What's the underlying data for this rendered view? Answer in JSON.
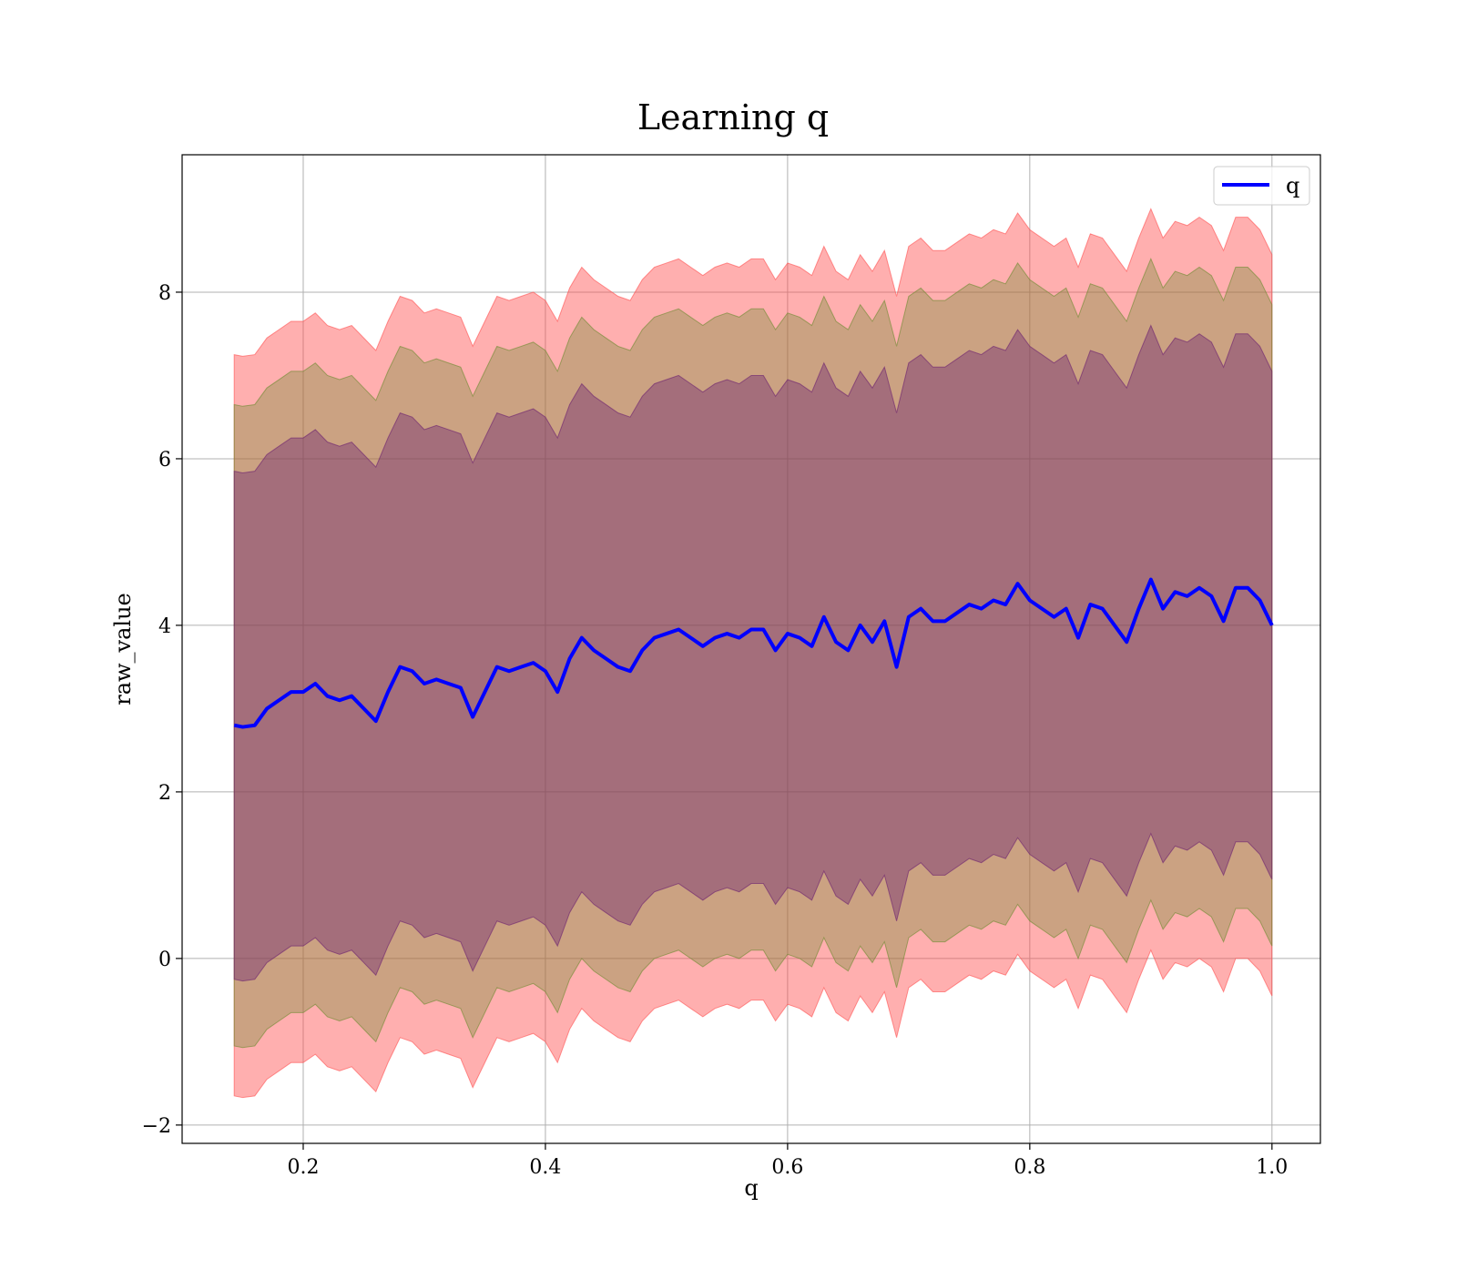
{
  "chart_data": {
    "type": "line",
    "title": "Learning q",
    "xlabel": "q",
    "ylabel": "raw_value",
    "xlim": [
      0.1,
      1.04
    ],
    "ylim": [
      -2.22,
      9.65
    ],
    "xticks": [
      0.2,
      0.4,
      0.6,
      0.8,
      1.0
    ],
    "xtick_labels": [
      "0.2",
      "0.4",
      "0.6",
      "0.8",
      "1.0"
    ],
    "yticks": [
      -2,
      0,
      2,
      4,
      6,
      8
    ],
    "ytick_labels": [
      "−2",
      "0",
      "2",
      "4",
      "6",
      "8"
    ],
    "grid": true,
    "legend": {
      "position": "top-right",
      "entries": [
        "q"
      ]
    },
    "x": [
      0.143,
      0.15,
      0.16,
      0.17,
      0.18,
      0.19,
      0.2,
      0.21,
      0.22,
      0.23,
      0.24,
      0.25,
      0.26,
      0.27,
      0.28,
      0.29,
      0.3,
      0.31,
      0.32,
      0.33,
      0.34,
      0.35,
      0.36,
      0.37,
      0.38,
      0.39,
      0.4,
      0.41,
      0.42,
      0.43,
      0.44,
      0.45,
      0.46,
      0.47,
      0.48,
      0.49,
      0.5,
      0.51,
      0.52,
      0.53,
      0.54,
      0.55,
      0.56,
      0.57,
      0.58,
      0.59,
      0.6,
      0.61,
      0.62,
      0.63,
      0.64,
      0.65,
      0.66,
      0.67,
      0.68,
      0.69,
      0.7,
      0.71,
      0.72,
      0.73,
      0.74,
      0.75,
      0.76,
      0.77,
      0.78,
      0.79,
      0.8,
      0.81,
      0.82,
      0.83,
      0.84,
      0.85,
      0.86,
      0.87,
      0.88,
      0.89,
      0.9,
      0.91,
      0.92,
      0.93,
      0.94,
      0.95,
      0.96,
      0.97,
      0.98,
      0.99,
      1.0
    ],
    "series": [
      {
        "name": "q",
        "color": "#0000ff",
        "values": [
          2.8,
          2.78,
          2.8,
          3.0,
          3.1,
          3.2,
          3.2,
          3.3,
          3.15,
          3.1,
          3.15,
          3.0,
          2.85,
          3.2,
          3.5,
          3.45,
          3.3,
          3.35,
          3.3,
          3.25,
          2.9,
          3.2,
          3.5,
          3.45,
          3.5,
          3.55,
          3.45,
          3.2,
          3.6,
          3.85,
          3.7,
          3.6,
          3.5,
          3.45,
          3.7,
          3.85,
          3.9,
          3.95,
          3.85,
          3.75,
          3.85,
          3.9,
          3.85,
          3.95,
          3.95,
          3.7,
          3.9,
          3.85,
          3.75,
          4.1,
          3.8,
          3.7,
          4.0,
          3.8,
          4.05,
          3.5,
          4.1,
          4.2,
          4.05,
          4.05,
          4.15,
          4.25,
          4.2,
          4.3,
          4.25,
          4.5,
          4.3,
          4.2,
          4.1,
          4.2,
          3.85,
          4.25,
          4.2,
          4.0,
          3.8,
          4.2,
          4.55,
          4.2,
          4.4,
          4.35,
          4.45,
          4.35,
          4.05,
          4.45,
          4.45,
          4.3,
          4.0
        ]
      }
    ],
    "bands": [
      {
        "color": "#ff4d4d",
        "opacity": 0.45,
        "upper_offset": 4.45,
        "lower_offset": -4.45
      },
      {
        "color": "#6a8a2f",
        "opacity": 0.35,
        "upper_offset": 3.85,
        "lower_offset": -3.85
      },
      {
        "color": "#6a2070",
        "opacity": 0.4,
        "upper_offset": 3.05,
        "lower_offset": -3.05
      }
    ]
  }
}
